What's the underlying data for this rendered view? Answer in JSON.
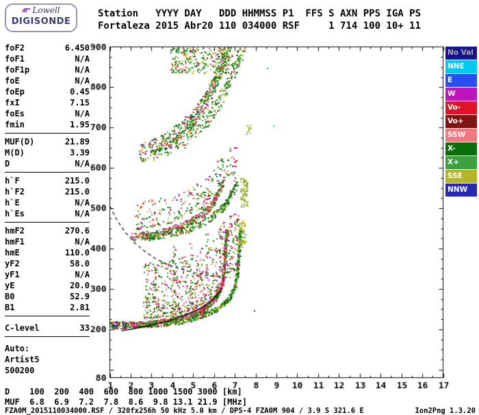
{
  "logo": {
    "top": "Lowell",
    "bottom": "DIGISONDE"
  },
  "header": {
    "line1": "Station   YYYY DAY   DDD HHMMSS P1  FFS S AXN PPS IGA PS",
    "line2": "Fortaleza 2015 Abr20 110 034000 RSF     1 714 100 10+ 11"
  },
  "params": {
    "groups": [
      {
        "rows": [
          {
            "l": "foF2",
            "v": "6.450"
          },
          {
            "l": "foF1",
            "v": "N/A"
          },
          {
            "l": "foF1p",
            "v": "N/A"
          },
          {
            "l": "foE",
            "v": "N/A"
          },
          {
            "l": "foEp",
            "v": "0.45"
          },
          {
            "l": "fxI",
            "v": "7.15"
          },
          {
            "l": "foEs",
            "v": "N/A"
          },
          {
            "l": "fmin",
            "v": "1.95"
          }
        ]
      },
      {
        "rows": [
          {
            "l": "MUF(D)",
            "v": "21.89"
          },
          {
            "l": "M(D)",
            "v": "3.39"
          },
          {
            "l": "D",
            "v": "N/A"
          }
        ]
      },
      {
        "rows": [
          {
            "l": "h`F",
            "v": "215.0"
          },
          {
            "l": "h`F2",
            "v": "215.0"
          },
          {
            "l": "h`E",
            "v": "N/A"
          },
          {
            "l": "h`Es",
            "v": "N/A"
          }
        ]
      },
      {
        "rows": [
          {
            "l": "hmF2",
            "v": "270.6"
          },
          {
            "l": "hmF1",
            "v": "N/A"
          },
          {
            "l": "hmE",
            "v": "110.0"
          },
          {
            "l": "yF2",
            "v": "58.0"
          },
          {
            "l": "yF1",
            "v": "N/A"
          },
          {
            "l": "yE",
            "v": "20.0"
          },
          {
            "l": "B0",
            "v": "52.9"
          },
          {
            "l": "B1",
            "v": "2.81"
          }
        ]
      },
      {
        "gap": true,
        "rows": [
          {
            "l": "C-level",
            "v": "33"
          }
        ]
      }
    ],
    "auto_lines": [
      "Auto:",
      "Artist5",
      "500200"
    ]
  },
  "legend": {
    "items": [
      {
        "label": "No Val",
        "bg": "#14148C",
        "fg": "#A8A8A8"
      },
      {
        "label": "NNE",
        "bg": "#00C8F0",
        "fg": "#FFFFFF"
      },
      {
        "label": "E",
        "bg": "#2850F0",
        "fg": "#FFFFFF"
      },
      {
        "label": "W",
        "bg": "#BE14BE",
        "fg": "#FFFFFF"
      },
      {
        "label": "Vo-",
        "bg": "#DC1428",
        "fg": "#FFFFFF"
      },
      {
        "label": "Vo+",
        "bg": "#821414",
        "fg": "#FFFFFF"
      },
      {
        "label": "SSW",
        "bg": "#F07882",
        "fg": "#FFFFFF"
      },
      {
        "label": "X-",
        "bg": "#0A6E0A",
        "fg": "#FFFFFF"
      },
      {
        "label": "X+",
        "bg": "#3CA03C",
        "fg": "#FFFFFF"
      },
      {
        "label": "SSE",
        "bg": "#B4B428",
        "fg": "#FFFFFF"
      },
      {
        "label": "NNW",
        "bg": "#2828B4",
        "fg": "#FFFFFF"
      }
    ]
  },
  "dmuf": {
    "d_label": "D",
    "d_values": [
      "100",
      "200",
      "400",
      "600",
      "800",
      "1000",
      "1500",
      "3000"
    ],
    "d_unit": "[km]",
    "muf_label": "MUF",
    "muf_values": [
      "6.8",
      "6.9",
      "7.2",
      "7.8",
      "8.6",
      "9.8",
      "13.1",
      "21.9"
    ],
    "muf_unit": "[MHz]"
  },
  "footer": {
    "left": "FZA0M_2015110034000.RSF / 320fx256h 50 kHz 5.0 km / DPS-4 FZA0M 904 / 3.9 S 321.6 E",
    "right": "Ion2Png 1.3.20"
  },
  "chart_data": {
    "type": "scatter",
    "xlim": [
      1,
      17
    ],
    "ylim": [
      80,
      900
    ],
    "x_tick_labels": [
      1,
      2,
      3,
      4,
      5,
      6,
      7,
      8,
      9,
      10,
      11,
      12,
      13,
      14,
      15,
      16,
      17
    ],
    "y_tick_labels": [
      80,
      200,
      300,
      400,
      500,
      600,
      700,
      800,
      900
    ],
    "x_minor_step": 0.5,
    "y_minor_step": 25,
    "palette": {
      "red": "#DC1428",
      "salmon": "#F07882",
      "magenta": "#BE14BE",
      "dgreen": "#0A6E0A",
      "green": "#3CA03C",
      "olive": "#B4B428",
      "cyan": "#00C8F0",
      "navy": "#1E1E96",
      "blue": "#2850F0",
      "maroon": "#821414",
      "black": "#202020"
    },
    "mixes": {
      "omix": [
        [
          "salmon",
          0.32
        ],
        [
          "red",
          0.27
        ],
        [
          "magenta",
          0.1
        ],
        [
          "dgreen",
          0.17
        ],
        [
          "green",
          0.14
        ]
      ],
      "omix2": [
        [
          "dgreen",
          0.24
        ],
        [
          "green",
          0.18
        ],
        [
          "red",
          0.2
        ],
        [
          "salmon",
          0.2
        ],
        [
          "magenta",
          0.06
        ],
        [
          "olive",
          0.12
        ]
      ],
      "xmix": [
        [
          "dgreen",
          0.4
        ],
        [
          "green",
          0.32
        ],
        [
          "olive",
          0.14
        ],
        [
          "red",
          0.07
        ],
        [
          "salmon",
          0.07
        ]
      ],
      "spreadmix": [
        [
          "dgreen",
          0.26
        ],
        [
          "green",
          0.2
        ],
        [
          "salmon",
          0.2
        ],
        [
          "red",
          0.14
        ],
        [
          "olive",
          0.12
        ],
        [
          "magenta",
          0.08
        ]
      ],
      "hop3mix": [
        [
          "dgreen",
          0.28
        ],
        [
          "green",
          0.24
        ],
        [
          "olive",
          0.2
        ],
        [
          "red",
          0.1
        ],
        [
          "salmon",
          0.12
        ],
        [
          "magenta",
          0.06
        ]
      ],
      "topmix": [
        [
          "dgreen",
          0.28
        ],
        [
          "green",
          0.28
        ],
        [
          "olive",
          0.22
        ],
        [
          "red",
          0.1
        ],
        [
          "salmon",
          0.12
        ]
      ],
      "leftmix": [
        [
          "dgreen",
          0.3
        ],
        [
          "red",
          0.2
        ],
        [
          "salmon",
          0.15
        ],
        [
          "navy",
          0.2
        ],
        [
          "green",
          0.15
        ]
      ],
      "streakmix": [
        [
          "green",
          0.3
        ],
        [
          "dgreen",
          0.25
        ],
        [
          "salmon",
          0.25
        ],
        [
          "red",
          0.2
        ]
      ],
      "yellowmix": [
        [
          "olive",
          0.8
        ],
        [
          "green",
          0.2
        ]
      ],
      "yellowcyan": [
        [
          "olive",
          0.7
        ],
        [
          "cyan",
          0.3
        ]
      ]
    },
    "profile_curve": [
      [
        1.55,
        196
      ],
      [
        2.1,
        201
      ],
      [
        2.7,
        207
      ],
      [
        3.3,
        214
      ],
      [
        3.9,
        222
      ],
      [
        4.5,
        232
      ],
      [
        5.0,
        243
      ],
      [
        5.5,
        257
      ],
      [
        5.9,
        272
      ],
      [
        6.15,
        285
      ],
      [
        6.3,
        295
      ],
      [
        6.4,
        303
      ]
    ],
    "muf_curve": [
      [
        1.0,
        505
      ],
      [
        1.35,
        470
      ],
      [
        1.75,
        440
      ],
      [
        2.2,
        414
      ],
      [
        2.7,
        392
      ],
      [
        3.2,
        375
      ],
      [
        3.8,
        360
      ],
      [
        4.4,
        349
      ],
      [
        5.0,
        341
      ],
      [
        5.6,
        335
      ],
      [
        6.2,
        331
      ],
      [
        6.8,
        328
      ]
    ],
    "scatter_clusters": [
      {
        "kind": "trace",
        "poly": [
          [
            1.7,
            212
          ],
          [
            2.3,
            213
          ],
          [
            3.0,
            216
          ],
          [
            3.7,
            221
          ],
          [
            4.3,
            228
          ],
          [
            4.9,
            238
          ],
          [
            5.4,
            250
          ],
          [
            5.8,
            264
          ],
          [
            6.1,
            281
          ],
          [
            6.3,
            302
          ],
          [
            6.42,
            330
          ],
          [
            6.5,
            372
          ],
          [
            6.55,
            415
          ],
          [
            6.58,
            448
          ]
        ],
        "n": 950,
        "fj": 0.05,
        "hj": 7,
        "mix": "omix"
      },
      {
        "kind": "trace",
        "poly": [
          [
            2.35,
            212
          ],
          [
            2.95,
            213
          ],
          [
            3.65,
            216
          ],
          [
            4.35,
            221
          ],
          [
            4.95,
            228
          ],
          [
            5.55,
            238
          ],
          [
            6.05,
            250
          ],
          [
            6.45,
            264
          ],
          [
            6.75,
            281
          ],
          [
            6.95,
            302
          ],
          [
            7.07,
            330
          ],
          [
            7.15,
            372
          ],
          [
            7.2,
            415
          ],
          [
            7.24,
            452
          ]
        ],
        "n": 650,
        "fj": 0.05,
        "hj": 7,
        "mix": "xmix"
      },
      {
        "kind": "band",
        "poly": [
          [
            2.6,
            216
          ],
          [
            4.0,
            225
          ],
          [
            5.0,
            241
          ],
          [
            6.0,
            273
          ],
          [
            6.5,
            330
          ],
          [
            7.2,
            342
          ]
        ],
        "n": 750,
        "h0": 10,
        "h1": 150,
        "mix": "spreadmix"
      },
      {
        "kind": "trace",
        "poly": [
          [
            2.0,
            430
          ],
          [
            2.7,
            434
          ],
          [
            3.4,
            441
          ],
          [
            4.1,
            451
          ],
          [
            4.7,
            464
          ],
          [
            5.2,
            479
          ],
          [
            5.7,
            499
          ],
          [
            6.0,
            520
          ],
          [
            6.25,
            545
          ],
          [
            6.4,
            567
          ]
        ],
        "n": 420,
        "fj": 0.06,
        "hj": 9,
        "mix": "omix2"
      },
      {
        "kind": "trace",
        "poly": [
          [
            2.65,
            430
          ],
          [
            3.35,
            434
          ],
          [
            4.05,
            441
          ],
          [
            4.75,
            451
          ],
          [
            5.35,
            464
          ],
          [
            5.85,
            479
          ],
          [
            6.35,
            499
          ],
          [
            6.65,
            520
          ],
          [
            6.9,
            545
          ],
          [
            7.05,
            568
          ]
        ],
        "n": 300,
        "fj": 0.06,
        "hj": 9,
        "mix": "xmix"
      },
      {
        "kind": "band",
        "poly": [
          [
            2.2,
            440
          ],
          [
            4.0,
            458
          ],
          [
            5.5,
            495
          ],
          [
            6.5,
            570
          ],
          [
            7.05,
            580
          ]
        ],
        "n": 260,
        "h0": 8,
        "h1": 75,
        "mix": "spreadmix"
      },
      {
        "kind": "trace",
        "poly": [
          [
            2.4,
            636
          ],
          [
            3.1,
            652
          ],
          [
            3.8,
            672
          ],
          [
            4.5,
            698
          ],
          [
            5.1,
            730
          ],
          [
            5.6,
            768
          ],
          [
            6.0,
            810
          ],
          [
            6.35,
            852
          ],
          [
            6.6,
            885
          ],
          [
            6.8,
            898
          ]
        ],
        "n": 520,
        "fj": 0.07,
        "hj": 22,
        "mix": "hop3mix"
      },
      {
        "kind": "trace",
        "poly": [
          [
            3.05,
            636
          ],
          [
            3.75,
            652
          ],
          [
            4.45,
            672
          ],
          [
            5.15,
            698
          ],
          [
            5.75,
            730
          ],
          [
            6.25,
            768
          ],
          [
            6.65,
            810
          ],
          [
            7.0,
            852
          ],
          [
            7.25,
            885
          ],
          [
            7.45,
            898
          ]
        ],
        "n": 300,
        "fj": 0.07,
        "hj": 22,
        "mix": "xmix"
      },
      {
        "kind": "blob",
        "x": [
          3.9,
          6.7
        ],
        "y": [
          836,
          900
        ],
        "n": 260,
        "mix": "topmix"
      },
      {
        "kind": "blob",
        "x": [
          1.0,
          1.75
        ],
        "y": [
          202,
          220
        ],
        "n": 90,
        "mix": "leftmix"
      },
      {
        "kind": "blob",
        "x": [
          4.0,
          4.12
        ],
        "y": [
          245,
          415
        ],
        "n": 22,
        "mix": "streakmix"
      },
      {
        "kind": "blob",
        "x": [
          5.56,
          5.7
        ],
        "y": [
          255,
          440
        ],
        "n": 20,
        "mix": "streakmix"
      },
      {
        "kind": "blob",
        "x": [
          3.06,
          3.18
        ],
        "y": [
          232,
          330
        ],
        "n": 14,
        "mix": "streakmix"
      },
      {
        "kind": "blob",
        "x": [
          4.8,
          4.92
        ],
        "y": [
          250,
          430
        ],
        "n": 16,
        "mix": "streakmix"
      },
      {
        "kind": "blob",
        "x": [
          7.25,
          7.6
        ],
        "y": [
          505,
          575
        ],
        "n": 70,
        "mix": "yellowmix"
      },
      {
        "kind": "blob",
        "x": [
          7.15,
          7.5
        ],
        "y": [
          405,
          470
        ],
        "n": 55,
        "mix": "yellowmix"
      },
      {
        "kind": "blob",
        "x": [
          7.5,
          7.78
        ],
        "y": [
          685,
          712
        ],
        "n": 14,
        "mix": "yellowcyan"
      }
    ],
    "singles": [
      [
        8.85,
        705,
        "cyan"
      ],
      [
        8.55,
        848,
        "green"
      ],
      [
        7.92,
        248,
        "navy"
      ]
    ]
  }
}
